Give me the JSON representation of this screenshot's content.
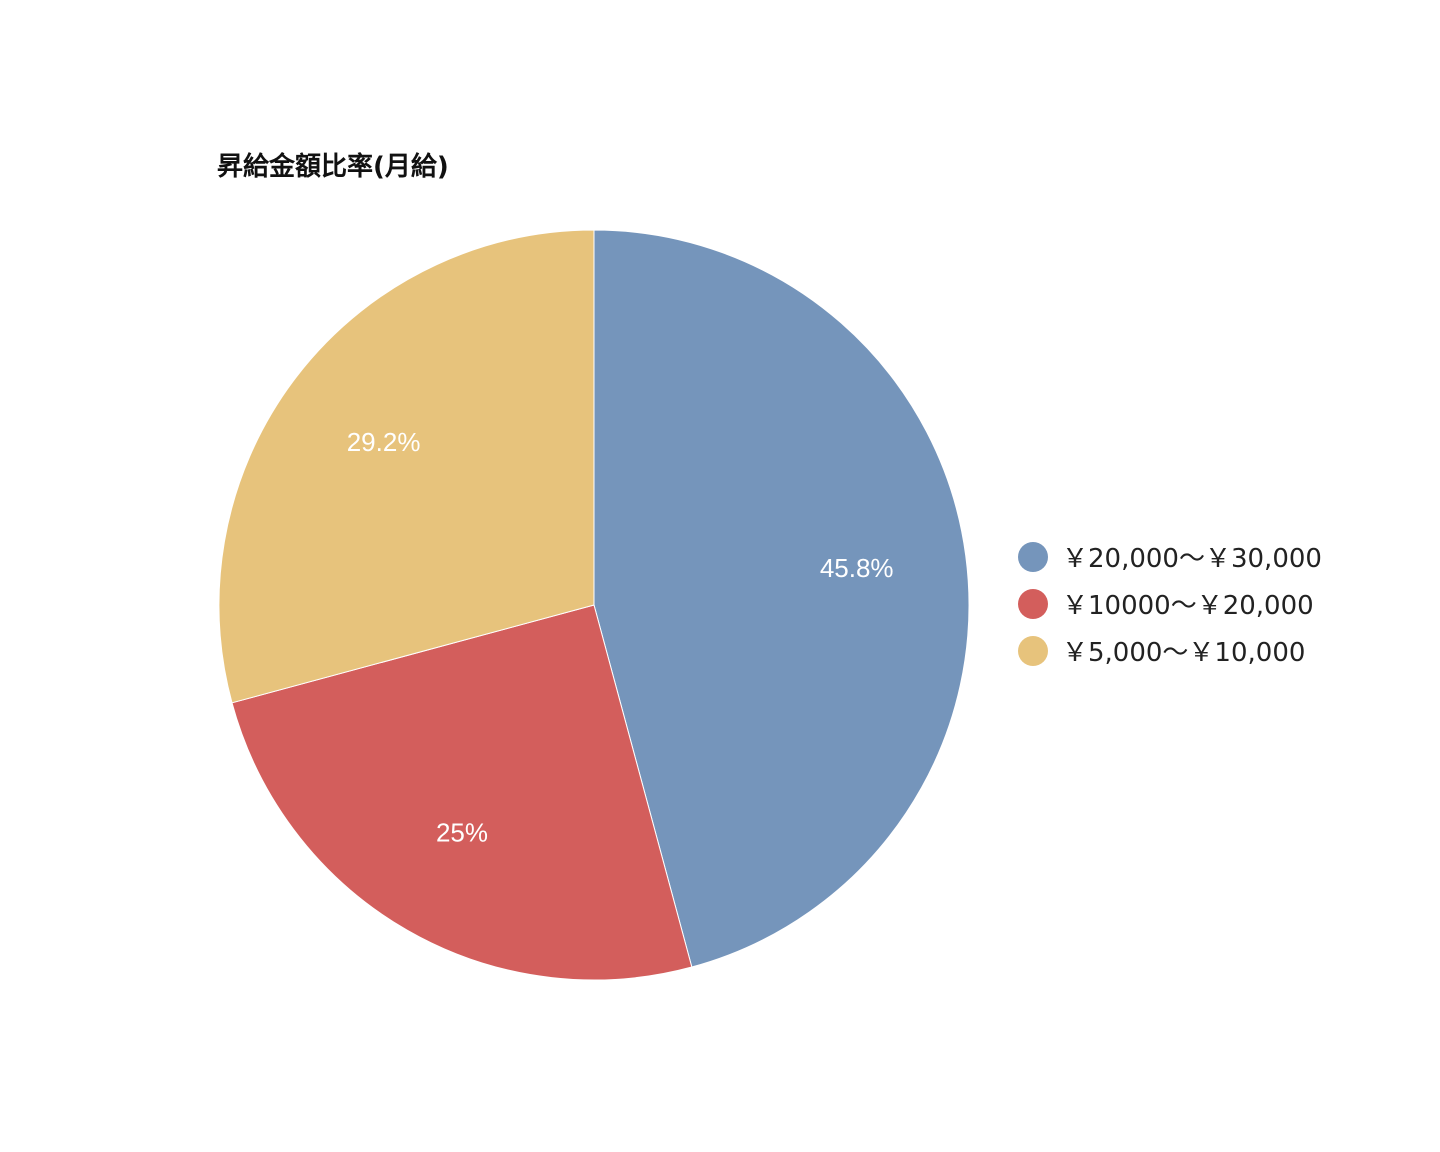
{
  "chart_data": {
    "type": "pie",
    "title": "昇給金額比率(月給)",
    "legend_position": "right",
    "slices": [
      {
        "label": "￥20,000～￥30,000",
        "value": 45.8,
        "value_label": "45.8%",
        "color": "#7595bb"
      },
      {
        "label": "￥10000～￥20,000",
        "value": 25,
        "value_label": "25%",
        "color": "#d35e5c"
      },
      {
        "label": "￥5,000～￥10,000",
        "value": 29.2,
        "value_label": "29.2%",
        "color": "#e7c37c"
      }
    ]
  }
}
